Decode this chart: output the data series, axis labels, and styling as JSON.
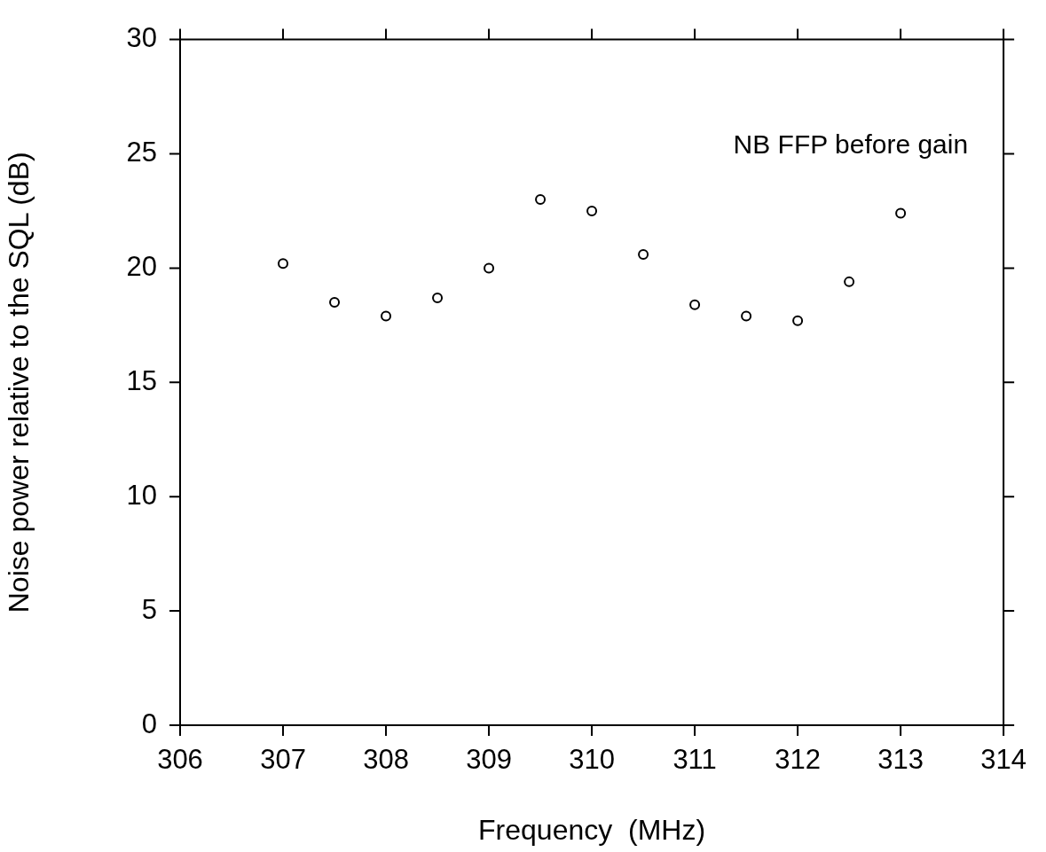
{
  "chart_data": {
    "type": "scatter",
    "xlabel": "Frequency  (MHz)",
    "ylabel": "Noise power relative to the SQL (dB)",
    "annotations": [
      "NB FFP before gain"
    ],
    "x": [
      307,
      307.5,
      308,
      308.5,
      309,
      309.5,
      310,
      310.5,
      311,
      311.5,
      312,
      312.5,
      313
    ],
    "series": [
      {
        "color": "#000000",
        "values": [
          20.2,
          18.5,
          17.9,
          18.7,
          20.0,
          23.0,
          22.5,
          20.6,
          18.4,
          17.9,
          17.7,
          19.4,
          22.4
        ]
      }
    ],
    "xlim": [
      306,
      314
    ],
    "xticks": [
      306,
      307,
      308,
      309,
      310,
      311,
      312,
      313,
      314
    ],
    "ylim": [
      0,
      30
    ],
    "yticks": [
      0,
      5,
      10,
      15,
      20,
      25,
      30
    ],
    "marker": "circle",
    "grid": false,
    "legend": false
  }
}
